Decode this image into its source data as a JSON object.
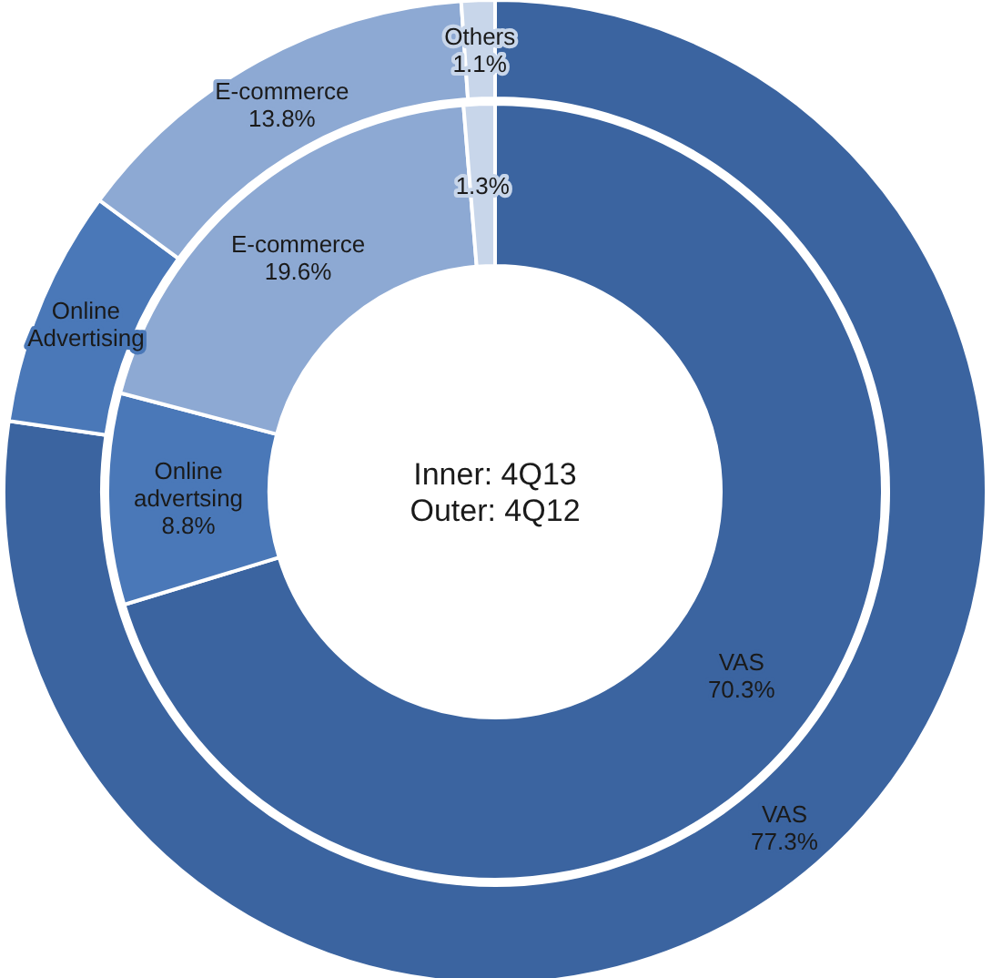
{
  "chart_data": [
    {
      "type": "donut",
      "categories": [
        "VAS",
        "Online Advertising",
        "E-commerce",
        "Others"
      ],
      "values": [
        77.3,
        7.8,
        13.8,
        1.1
      ],
      "colors": [
        "#3b64a0",
        "#4a78b8",
        "#8da9d3",
        "#c8d6ea"
      ],
      "value_labels": [
        "77.3%",
        null,
        "13.8%",
        "1.1%"
      ],
      "annotations": [
        "Inner: 4Q13",
        "Outer: 4Q12"
      ]
    },
    {
      "type": "donut",
      "categories": [
        "VAS",
        "Online advertsing",
        "E-commerce",
        null
      ],
      "values": [
        70.3,
        8.8,
        19.6,
        1.3
      ],
      "colors": [
        "#3b64a0",
        "#4a78b8",
        "#8da9d3",
        "#c8d6ea"
      ],
      "value_labels": [
        "70.3%",
        "8.8%",
        "19.6%",
        "1.3%"
      ]
    }
  ]
}
